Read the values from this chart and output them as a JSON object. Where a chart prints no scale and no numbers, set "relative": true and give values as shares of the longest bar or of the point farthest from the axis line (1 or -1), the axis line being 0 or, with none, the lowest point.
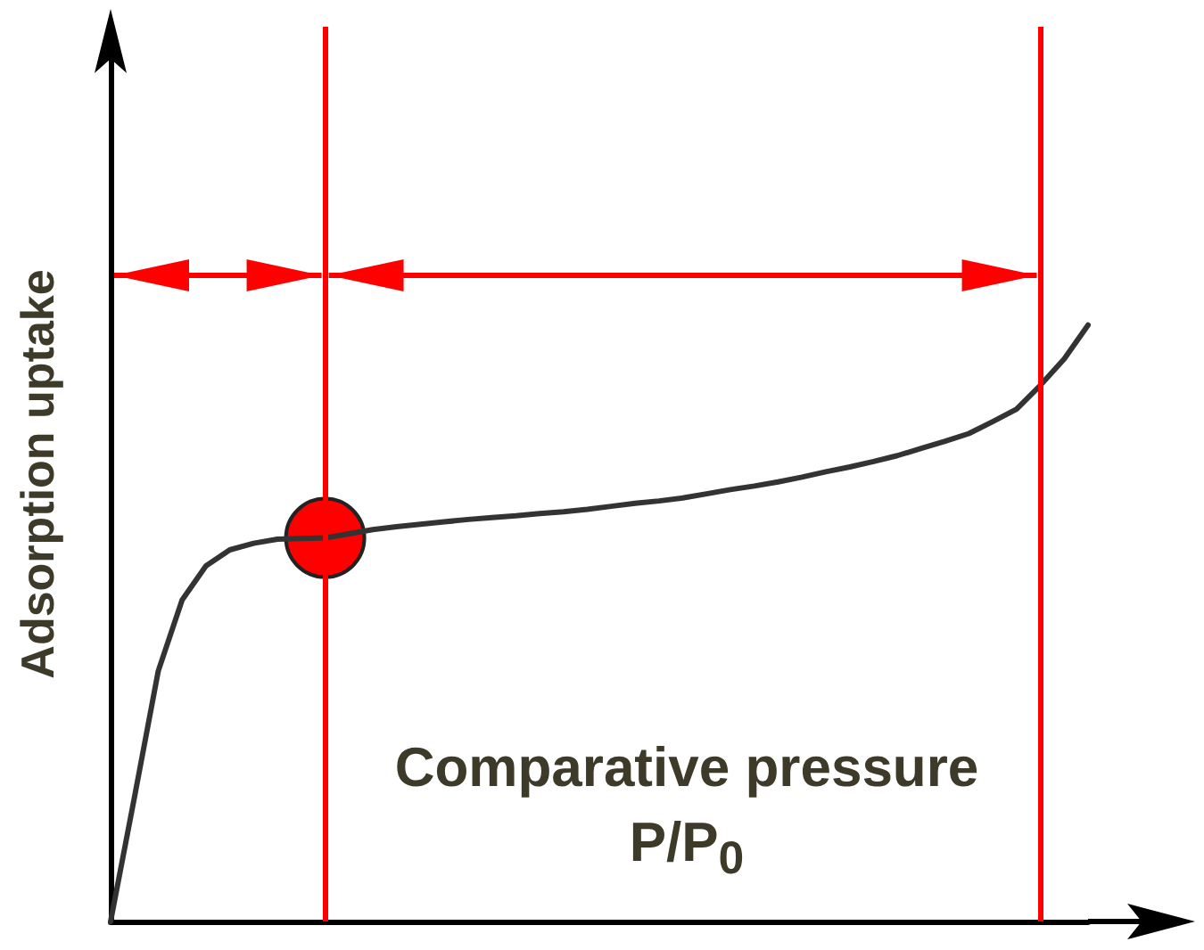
{
  "chart_data": {
    "type": "line",
    "relative": true,
    "xlabel": "Comparative pressure P/P$_{0}$",
    "ylabel": "Adsorption uptake",
    "grid": false,
    "categories": [
      null,
      null,
      null,
      null,
      null,
      null,
      null,
      null,
      null,
      null,
      null,
      null,
      null,
      null,
      null,
      null,
      null,
      null,
      null,
      null,
      null,
      null,
      null,
      null,
      null,
      null,
      null,
      null,
      null,
      null,
      null,
      null,
      null,
      null,
      null,
      null,
      null,
      null,
      null,
      null,
      null,
      null
    ],
    "series": [
      {
        "color": "#333333",
        "marker": "none",
        "values": [
          0,
          0.208,
          0.42,
          0.539,
          0.596,
          0.623,
          0.634,
          0.641,
          0.642,
          0.643,
          0.65,
          0.657,
          0.662,
          0.666,
          0.67,
          0.674,
          0.677,
          0.68,
          0.684,
          0.687,
          0.691,
          0.696,
          0.701,
          0.705,
          0.71,
          0.717,
          0.724,
          0.73,
          0.737,
          0.745,
          0.754,
          0.762,
          0.771,
          0.781,
          0.793,
          0.805,
          0.818,
          0.838,
          0.859,
          0.899,
          0.943,
          1
        ]
      }
    ],
    "line_style": "solid"
  }
}
